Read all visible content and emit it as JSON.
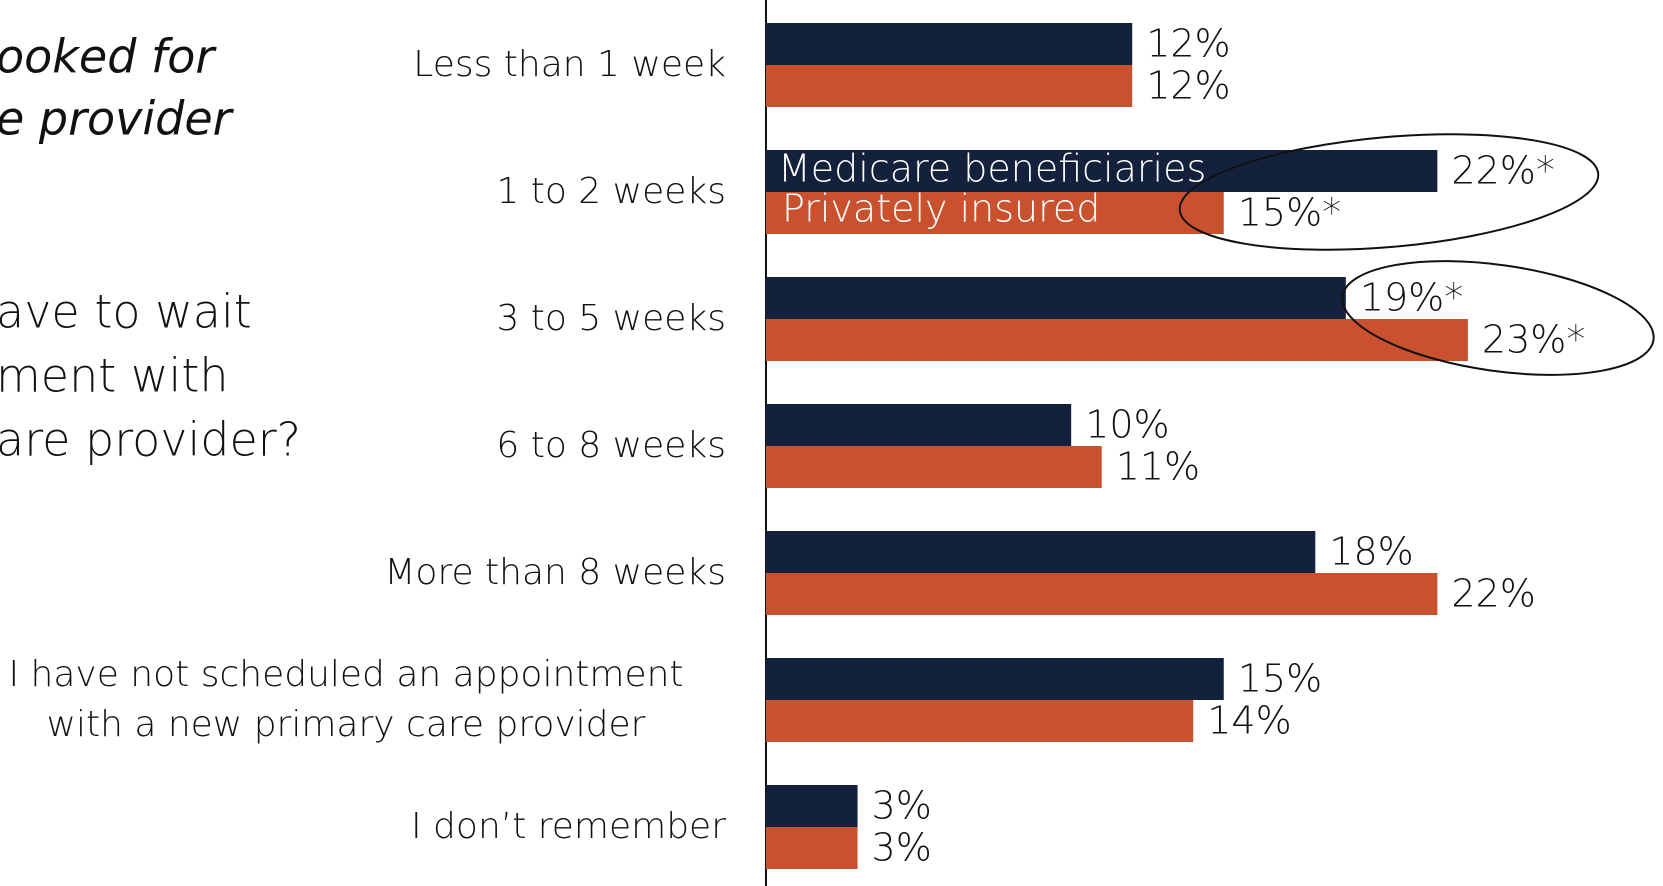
{
  "chart_data": {
    "type": "bar",
    "orientation": "horizontal",
    "annotations": [
      "ooked for",
      "e provider",
      "ave to wait",
      "ment with",
      "are provider?"
    ],
    "categories": [
      "Less than 1 week",
      "1 to 2 weeks",
      "3 to 5 weeks",
      "6 to 8 weeks",
      "More than 8 weeks",
      "I have not scheduled an appointment with a new primary care provider",
      "I don’t remember"
    ],
    "series": [
      {
        "name": "Medicare beneficiaries",
        "color": "#14213d",
        "values": [
          12,
          22,
          19,
          10,
          18,
          15,
          3
        ],
        "value_labels": [
          "12%",
          "22%*",
          "19%*",
          "10%",
          "18%",
          "15%",
          "3%"
        ]
      },
      {
        "name": "Privately insured",
        "color": "#c9512e",
        "values": [
          12,
          15,
          23,
          11,
          22,
          14,
          3
        ],
        "value_labels": [
          "12%",
          "15%*",
          "23%*",
          "11%",
          "22%",
          "14%",
          "3%"
        ]
      }
    ],
    "xlim": [
      0,
      29
    ]
  }
}
